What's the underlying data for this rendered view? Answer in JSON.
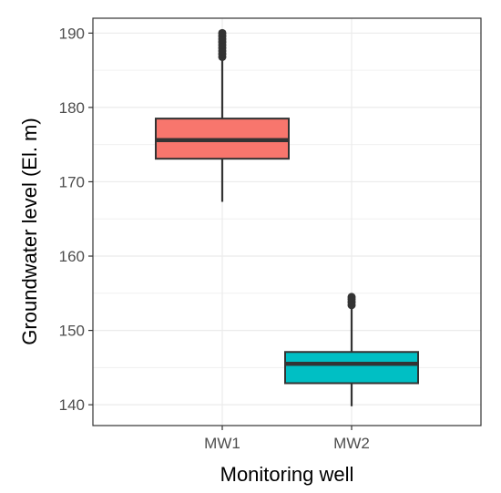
{
  "chart_data": {
    "type": "boxplot",
    "title": "",
    "xlabel": "Monitoring well",
    "ylabel": "Groundwater level (El. m)",
    "ylim": [
      137.2,
      192.0
    ],
    "yticks": [
      140,
      150,
      160,
      170,
      180,
      190
    ],
    "ytick_labels": [
      "140",
      "150",
      "160",
      "170",
      "180",
      "190"
    ],
    "grid": true,
    "legend": "none",
    "categories": [
      "MW1",
      "MW2"
    ],
    "boxes": [
      {
        "category": "MW1",
        "color": "#F8766D",
        "whisker_low": 167.3,
        "q1": 173.1,
        "median": 175.6,
        "q3": 178.5,
        "whisker_high": 186.4,
        "outliers": [
          186.8,
          187.2,
          187.6,
          188.0,
          188.4,
          188.8,
          189.2,
          189.6,
          190.0
        ]
      },
      {
        "category": "MW2",
        "color": "#00BFC4",
        "whisker_low": 139.8,
        "q1": 142.9,
        "median": 145.5,
        "q3": 147.1,
        "whisker_high": 153.0,
        "outliers": [
          153.4,
          153.8,
          154.2,
          154.5
        ]
      }
    ]
  }
}
